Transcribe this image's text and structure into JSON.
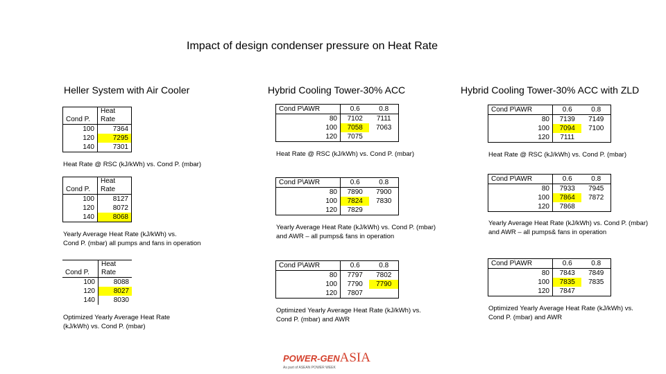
{
  "title": "Impact of design condenser pressure on Heat Rate",
  "columns": [
    "Heller System with Air Cooler",
    "Hybrid Cooling Tower-30% ACC",
    "Hybrid Cooling Tower-30% ACC with ZLD"
  ],
  "heller": {
    "t1": {
      "h1": "Cond P.",
      "h2": "Heat Rate",
      "rows": [
        [
          "100",
          "7364"
        ],
        [
          "120",
          "7295"
        ],
        [
          "140",
          "7301"
        ]
      ],
      "caption": "Heat Rate @ RSC (kJ/kWh) vs. Cond P. (mbar)"
    },
    "t2": {
      "h1": "Cond P.",
      "h2": "Heat Rate",
      "rows": [
        [
          "100",
          "8127"
        ],
        [
          "120",
          "8072"
        ],
        [
          "140",
          "8068"
        ]
      ],
      "caption1": "Yearly Average Heat Rate (kJ/kWh) vs.",
      "caption2": "Cond P. (mbar) all pumps and fans in operation"
    },
    "t3": {
      "h1": "Cond P.",
      "h2": "Heat Rate",
      "rows": [
        [
          "100",
          "8088"
        ],
        [
          "120",
          "8027"
        ],
        [
          "140",
          "8030"
        ]
      ],
      "caption1": "Optimized Yearly Average Heat Rate",
      "caption2": "(kJ/kWh) vs. Cond P. (mbar)"
    }
  },
  "hybrid": {
    "t1": {
      "h1": "Cond P\\AWR",
      "h2": "0.6",
      "h3": "0.8",
      "rows": [
        [
          "80",
          "7102",
          "7111"
        ],
        [
          "100",
          "7058",
          "7063"
        ],
        [
          "120",
          "7075",
          ""
        ]
      ],
      "caption": "Heat Rate @ RSC (kJ/kWh) vs. Cond P. (mbar)"
    },
    "t2": {
      "h1": "Cond P\\AWR",
      "h2": "0.6",
      "h3": "0.8",
      "rows": [
        [
          "80",
          "7890",
          "7900"
        ],
        [
          "100",
          "7824",
          "7830"
        ],
        [
          "120",
          "7829",
          ""
        ]
      ],
      "caption1": "Yearly Average Heat Rate (kJ/kWh) vs. Cond P. (mbar)",
      "caption2": "and AWR – all pumps& fans in operation"
    },
    "t3": {
      "h1": "Cond P\\AWR",
      "h2": "0.6",
      "h3": "0.8",
      "rows": [
        [
          "80",
          "7797",
          "7802"
        ],
        [
          "100",
          "7790",
          "7790"
        ],
        [
          "120",
          "7807",
          ""
        ]
      ],
      "caption1": "Optimized Yearly Average Heat Rate (kJ/kWh) vs.",
      "caption2": "Cond P. (mbar) and AWR"
    }
  },
  "zld": {
    "t1": {
      "h1": "Cond P\\AWR",
      "h2": "0.6",
      "h3": "0.8",
      "rows": [
        [
          "80",
          "7139",
          "7149"
        ],
        [
          "100",
          "7094",
          "7100"
        ],
        [
          "120",
          "7111",
          ""
        ]
      ],
      "caption": "Heat Rate @ RSC (kJ/kWh) vs. Cond P. (mbar)"
    },
    "t2": {
      "h1": "Cond P\\AWR",
      "h2": "0.6",
      "h3": "0.8",
      "rows": [
        [
          "80",
          "7933",
          "7945"
        ],
        [
          "100",
          "7864",
          "7872"
        ],
        [
          "120",
          "7868",
          ""
        ]
      ],
      "caption1": "Yearly Average Heat Rate (kJ/kWh) vs. Cond P. (mbar)",
      "caption2": "and AWR – all pumps& fans in operation"
    },
    "t3": {
      "h1": "Cond P\\AWR",
      "h2": "0.6",
      "h3": "0.8",
      "rows": [
        [
          "80",
          "7843",
          "7849"
        ],
        [
          "100",
          "7835",
          "7835"
        ],
        [
          "120",
          "7847",
          ""
        ]
      ],
      "caption1": "Optimized Yearly Average Heat Rate (kJ/kWh) vs.",
      "caption2": "Cond P. (mbar) and AWR"
    }
  },
  "logo": {
    "main": "POWER-GEN",
    "accent": "ASIA",
    "sub": "As part of ASEAN POWER WEEK"
  },
  "colors": {
    "highlight": "#ffff00",
    "logo": "#d4402c"
  }
}
